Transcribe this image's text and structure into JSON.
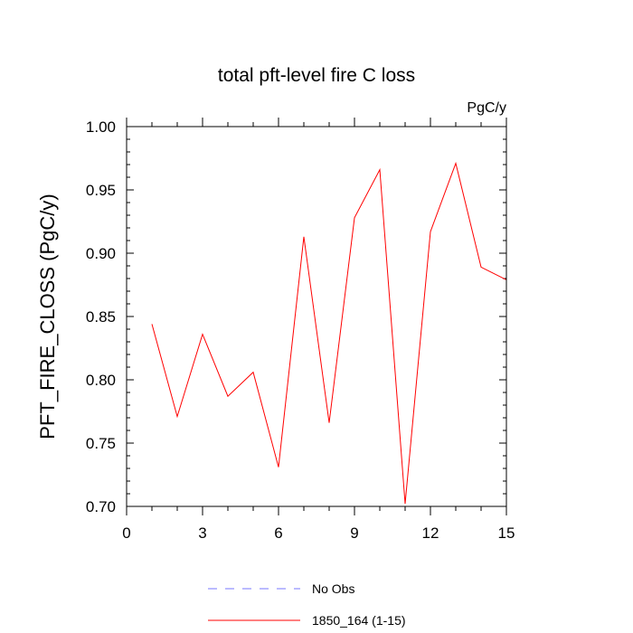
{
  "chart_data": {
    "type": "line",
    "title": "total pft-level fire C loss",
    "units": "PgC/y",
    "xlabel": "",
    "ylabel": "PFT_FIRE_CLOSS  (PgC/y)",
    "xlim": [
      0,
      15
    ],
    "ylim": [
      0.7,
      1.0
    ],
    "xticks": [
      0,
      3,
      6,
      9,
      12,
      15
    ],
    "xtick_labels": [
      "0",
      "3",
      "6",
      "9",
      "12",
      "15"
    ],
    "yticks": [
      0.7,
      0.75,
      0.8,
      0.85,
      0.9,
      0.95,
      1.0
    ],
    "ytick_labels": [
      "0.70",
      "0.75",
      "0.80",
      "0.85",
      "0.90",
      "0.95",
      "1.00"
    ],
    "grid": false,
    "legend_position": "bottom",
    "series": [
      {
        "name": "1850_164 (1-15)",
        "color": "#ff0000",
        "style": "solid",
        "x": [
          1,
          2,
          3,
          4,
          5,
          6,
          7,
          8,
          9,
          10,
          11,
          12,
          13,
          14,
          15
        ],
        "values": [
          0.844,
          0.771,
          0.836,
          0.787,
          0.806,
          0.731,
          0.913,
          0.766,
          0.928,
          0.966,
          0.702,
          0.917,
          0.971,
          0.889,
          0.879
        ]
      }
    ],
    "legend": [
      {
        "name": "No Obs",
        "color": "#7777ff",
        "style": "dashed"
      },
      {
        "name": "1850_164 (1-15)",
        "color": "#ff0000",
        "style": "solid"
      }
    ]
  }
}
